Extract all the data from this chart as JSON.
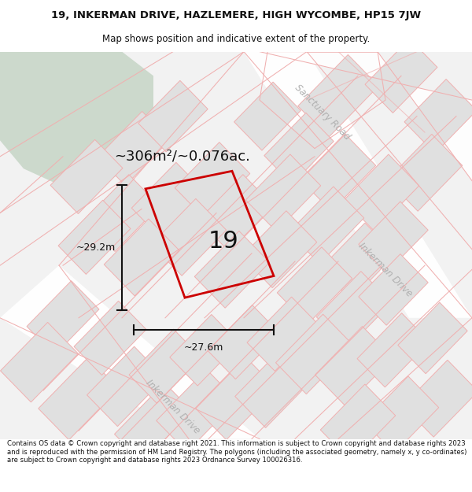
{
  "title_line1": "19, INKERMAN DRIVE, HAZLEMERE, HIGH WYCOMBE, HP15 7JW",
  "title_line2": "Map shows position and indicative extent of the property.",
  "area_text": "~306m²/~0.076ac.",
  "number_label": "19",
  "dim_height": "~29.2m",
  "dim_width": "~27.6m",
  "footer_text": "Contains OS data © Crown copyright and database right 2021. This information is subject to Crown copyright and database rights 2023 and is reproduced with the permission of HM Land Registry. The polygons (including the associated geometry, namely x, y co-ordinates) are subject to Crown copyright and database rights 2023 Ordnance Survey 100026316.",
  "bg_color": "#f2f2f2",
  "green_patch_color": "#ccd9cc",
  "road_label_color": "#b0b0b0",
  "road_fill_color": "#e8e8e8",
  "plot_fill_color": "#e0e0e0",
  "plot_edge_color": "#f0b0b0",
  "road_line_color": "#f0b0b0",
  "red_line_color": "#cc0000",
  "dim_line_color": "#111111",
  "text_color": "#111111",
  "white": "#ffffff"
}
